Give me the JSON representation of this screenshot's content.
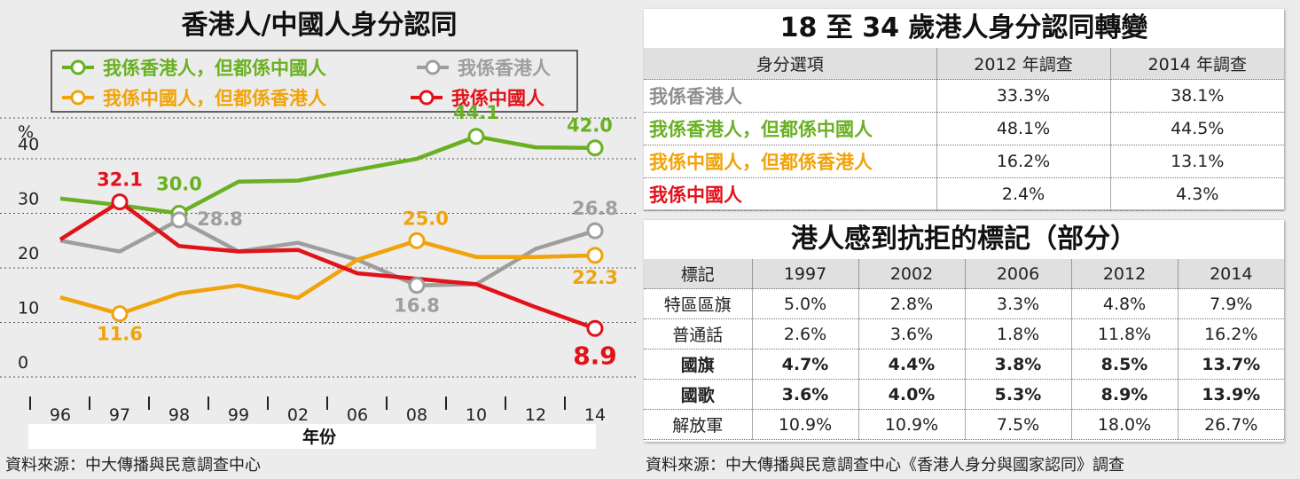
{
  "chart_data": {
    "type": "line",
    "title": "香港人/中國人身分認同",
    "xlabel": "年份",
    "ylabel": "%",
    "ylim": [
      0,
      46
    ],
    "yticks": [
      0,
      10,
      20,
      30,
      40
    ],
    "grid": true,
    "legend": "top",
    "x": [
      "96",
      "97",
      "98",
      "99",
      "02",
      "06",
      "08",
      "10",
      "12",
      "14"
    ],
    "series": [
      {
        "name": "我係香港人，但都係中國人",
        "color": "#6ab023",
        "values": [
          32.7,
          31.5,
          30.0,
          35.8,
          36.0,
          38.0,
          40.0,
          44.1,
          42.1,
          42.0
        ]
      },
      {
        "name": "我係香港人",
        "color": "#9e9e9e",
        "values": [
          25.0,
          23.0,
          28.8,
          23.0,
          24.6,
          21.5,
          16.8,
          17.0,
          23.5,
          26.8
        ]
      },
      {
        "name": "我係中國人，但都係香港人",
        "color": "#f0a30a",
        "values": [
          14.6,
          11.6,
          15.3,
          16.8,
          14.5,
          21.5,
          25.0,
          22.0,
          22.0,
          22.3
        ]
      },
      {
        "name": "我係中國人",
        "color": "#e2121b",
        "values": [
          25.2,
          32.1,
          24.0,
          23.0,
          23.3,
          19.0,
          18.0,
          17.0,
          12.8,
          8.9
        ]
      }
    ],
    "data_labels": [
      {
        "series": 0,
        "index": 2,
        "text": "30.0"
      },
      {
        "series": 0,
        "index": 7,
        "text": "44.1"
      },
      {
        "series": 0,
        "index": 9,
        "text": "42.0"
      },
      {
        "series": 1,
        "index": 2,
        "text": "28.8"
      },
      {
        "series": 1,
        "index": 6,
        "text": "16.8"
      },
      {
        "series": 1,
        "index": 9,
        "text": "26.8"
      },
      {
        "series": 2,
        "index": 1,
        "text": "11.6"
      },
      {
        "series": 2,
        "index": 6,
        "text": "25.0"
      },
      {
        "series": 2,
        "index": 9,
        "text": "22.3"
      },
      {
        "series": 3,
        "index": 1,
        "text": "32.1"
      },
      {
        "series": 3,
        "index": 9,
        "text": "8.9"
      }
    ]
  },
  "left_source": "資料來源：中大傳播與民意調查中心",
  "table1": {
    "title": "18 至 34 歲港人身分認同轉變",
    "headers": [
      "身分選項",
      "2012 年調查",
      "2014 年調查"
    ],
    "rows": [
      {
        "label": "我係香港人",
        "color": "#8f8f8f",
        "v2012": "33.3%",
        "v2014": "38.1%"
      },
      {
        "label": "我係香港人，但都係中國人",
        "color": "#6ab023",
        "v2012": "48.1%",
        "v2014": "44.5%"
      },
      {
        "label": "我係中國人，但都係香港人",
        "color": "#f0a30a",
        "v2012": "16.2%",
        "v2014": "13.1%"
      },
      {
        "label": "我係中國人",
        "color": "#e2121b",
        "v2012": "2.4%",
        "v2014": "4.3%"
      }
    ]
  },
  "table2": {
    "title": "港人感到抗拒的標記（部分）",
    "headers": [
      "標記",
      "1997",
      "2002",
      "2006",
      "2012",
      "2014"
    ],
    "rows": [
      {
        "label": "特區區旗",
        "values": [
          "5.0%",
          "2.8%",
          "3.3%",
          "4.8%",
          "7.9%"
        ]
      },
      {
        "label": "普通話",
        "values": [
          "2.6%",
          "3.6%",
          "1.8%",
          "11.8%",
          "16.2%"
        ]
      },
      {
        "label": "國旗",
        "values": [
          "4.7%",
          "4.4%",
          "3.8%",
          "8.5%",
          "13.7%"
        ]
      },
      {
        "label": "國歌",
        "values": [
          "3.6%",
          "4.0%",
          "5.3%",
          "8.9%",
          "13.9%"
        ]
      },
      {
        "label": "解放軍",
        "values": [
          "10.9%",
          "10.9%",
          "7.5%",
          "18.0%",
          "26.7%"
        ]
      }
    ]
  },
  "right_source": "資料來源：中大傳播與民意調查中心《香港人身分與國家認同》調查"
}
